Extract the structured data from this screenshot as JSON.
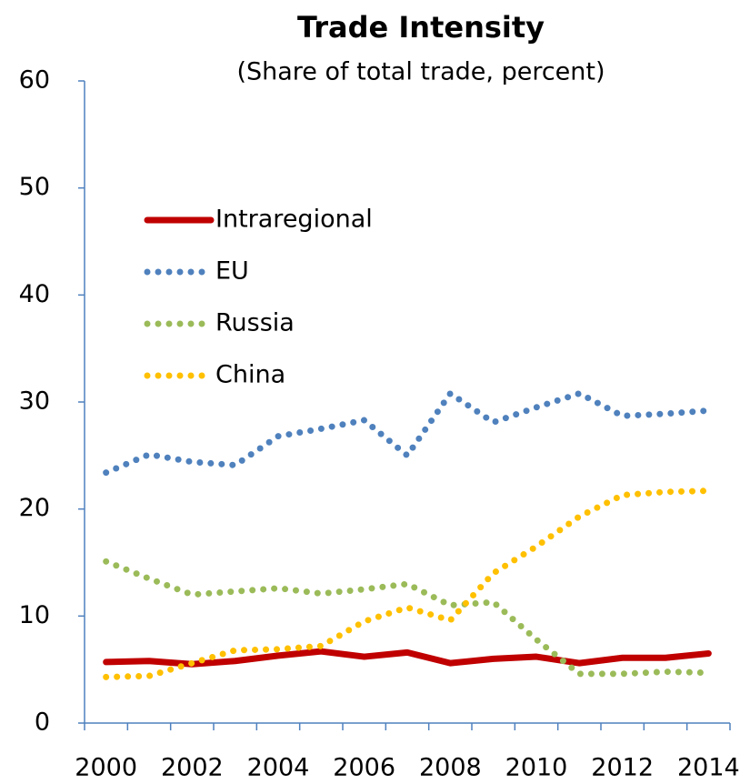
{
  "chart_data": {
    "type": "line",
    "title": "Trade Intensity",
    "subtitle": "(Share of total trade, percent)",
    "categories": [
      "2000",
      null,
      "2002",
      null,
      "2004",
      null,
      "2006",
      null,
      "2008",
      null,
      "2010",
      null,
      "2012",
      null,
      "2014"
    ],
    "series": [
      {
        "name": "Intraregional",
        "color": "#c00000",
        "style": "solid",
        "values": [
          5.7,
          5.8,
          5.5,
          5.8,
          6.3,
          6.7,
          6.2,
          6.6,
          5.6,
          6.0,
          6.2,
          5.6,
          6.1,
          6.1,
          6.5
        ]
      },
      {
        "name": "EU",
        "color": "#4f81bd",
        "style": "dotted",
        "values": [
          23.4,
          25.1,
          24.4,
          24.1,
          26.8,
          27.5,
          28.3,
          25.0,
          30.8,
          28.1,
          29.5,
          30.8,
          28.7,
          28.9,
          29.2
        ]
      },
      {
        "name": "Russia",
        "color": "#9bbb59",
        "style": "dotted",
        "values": [
          15.1,
          13.5,
          12.0,
          12.3,
          12.6,
          12.1,
          12.5,
          13.0,
          11.0,
          11.3,
          7.8,
          4.6,
          4.6,
          4.8,
          4.7
        ]
      },
      {
        "name": "China",
        "color": "#ffc000",
        "style": "dotted",
        "values": [
          4.3,
          4.4,
          5.6,
          6.8,
          6.9,
          7.2,
          9.5,
          10.8,
          9.6,
          14.0,
          16.5,
          19.3,
          21.3,
          21.6,
          21.7
        ]
      }
    ],
    "ylim": [
      0,
      60
    ],
    "yticks": [
      0,
      10,
      20,
      30,
      40,
      50,
      60
    ],
    "grid": false,
    "legend": "upper left"
  }
}
